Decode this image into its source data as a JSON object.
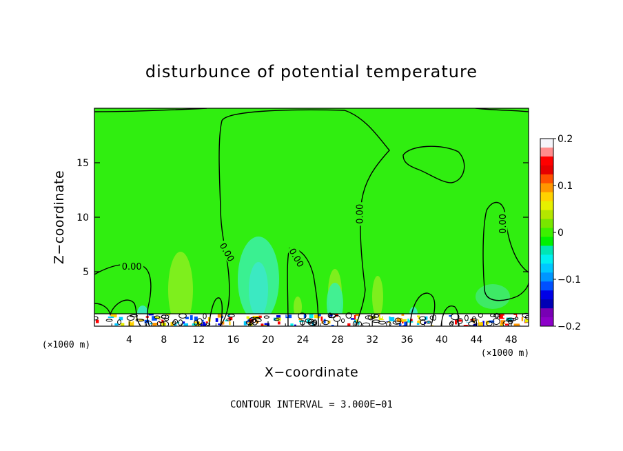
{
  "chart_data": {
    "type": "heatmap",
    "title": "disturbunce of potential temperature",
    "xlabel": "X−coordinate",
    "ylabel": "Z−coordinate",
    "x_unit_left": "(×1000 m)",
    "x_unit_right": "(×1000 m)",
    "footer": "CONTOUR INTERVAL = 3.000E−01",
    "xlim": [
      0,
      50
    ],
    "ylim": [
      0,
      20
    ],
    "x_ticks": [
      4,
      8,
      12,
      16,
      20,
      24,
      28,
      32,
      36,
      40,
      44,
      48
    ],
    "y_ticks": [
      5,
      10,
      15
    ],
    "contour_interval": 0.3,
    "contour_labels": [
      {
        "text": "0.00",
        "x": 4.3,
        "z": 5.5
      },
      {
        "text": "0.00",
        "x": 15.3,
        "z": 6.8
      },
      {
        "text": "0.00",
        "x": 23.3,
        "z": 6.3
      },
      {
        "text": "0.00",
        "x": 30.5,
        "z": 10.3
      },
      {
        "text": "0.00",
        "x": 47.0,
        "z": 9.4
      }
    ],
    "colorbar": {
      "min": -0.2,
      "max": 0.2,
      "tick_labels": [
        "0.2",
        "0.1",
        "0",
        "−0.1",
        "−0.2"
      ],
      "colors": [
        "#f5f5fa",
        "#ff8c8c",
        "#ff0000",
        "#e60000",
        "#ff5000",
        "#ff9600",
        "#ffd200",
        "#e6f000",
        "#b4e600",
        "#78e600",
        "#3cf000",
        "#00f000",
        "#00e6b4",
        "#00f0f0",
        "#00c8ff",
        "#0096ff",
        "#0050ff",
        "#0000e6",
        "#0000b4",
        "#7800b4",
        "#8c00c8"
      ]
    }
  }
}
